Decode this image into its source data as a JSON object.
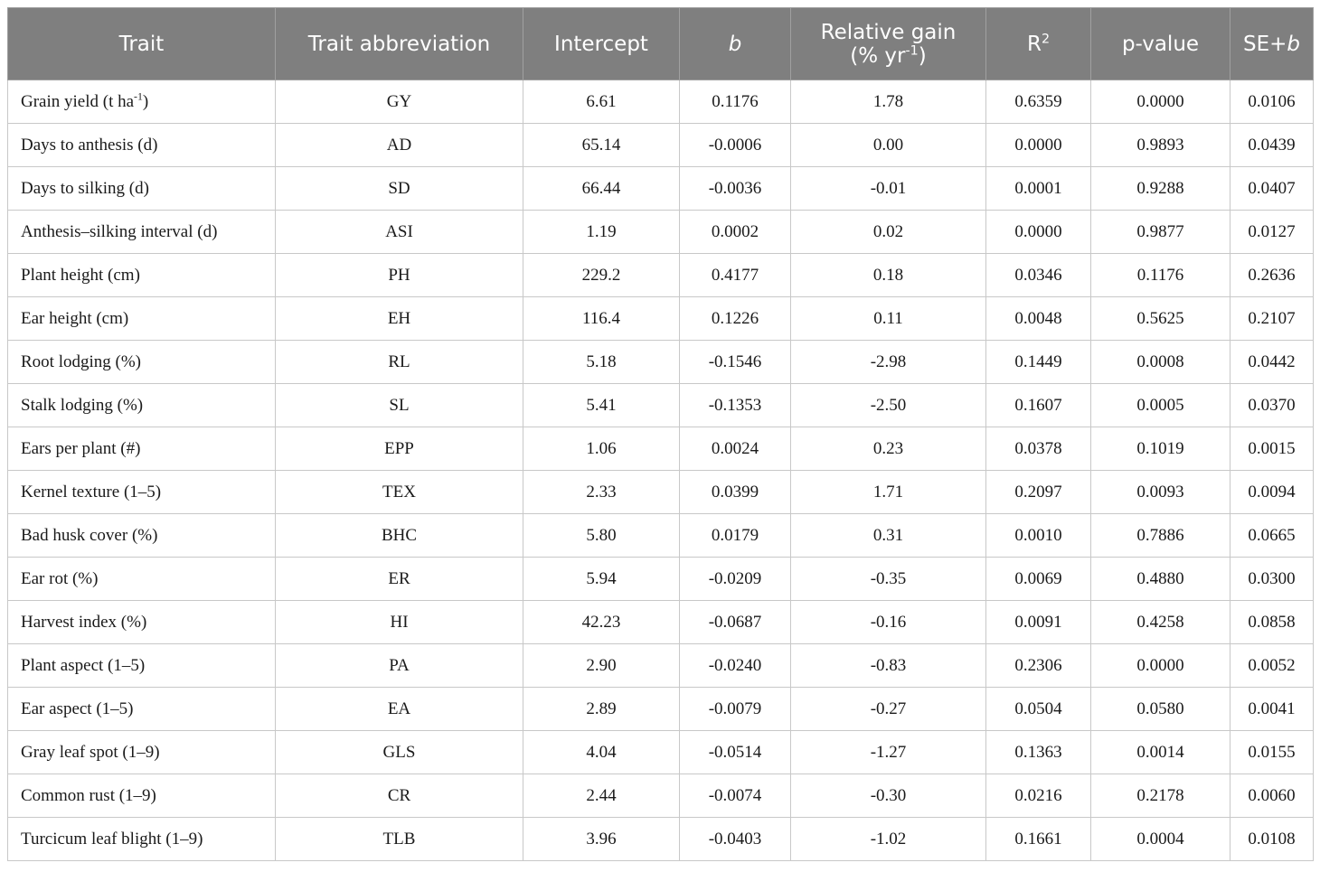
{
  "headers": {
    "trait": "Trait",
    "abbr": "Trait abbreviation",
    "intercept": "Intercept",
    "b": "b",
    "rel_gain_line1": "Relative gain",
    "rel_gain_line2_pre": "(% yr",
    "rel_gain_line2_sup": "-1",
    "rel_gain_line2_post": ")",
    "r2_base": "R",
    "r2_sup": "2",
    "pvalue": "p-value",
    "se_pre": "SE+",
    "se_b": "b"
  },
  "rows": [
    {
      "trait": "Grain yield (t ha",
      "trait_sup": "-1",
      "trait_post": ")",
      "abbr": "GY",
      "intercept": "6.61",
      "b": "0.1176",
      "rel_gain": "1.78",
      "r2": "0.6359",
      "p": "0.0000",
      "se": "0.0106"
    },
    {
      "trait": "Days to anthesis (d)",
      "abbr": "AD",
      "intercept": "65.14",
      "b": "-0.0006",
      "rel_gain": "0.00",
      "r2": "0.0000",
      "p": "0.9893",
      "se": "0.0439"
    },
    {
      "trait": "Days to silking (d)",
      "abbr": "SD",
      "intercept": "66.44",
      "b": "-0.0036",
      "rel_gain": "-0.01",
      "r2": "0.0001",
      "p": "0.9288",
      "se": "0.0407"
    },
    {
      "trait": "Anthesis–silking interval (d)",
      "abbr": "ASI",
      "intercept": "1.19",
      "b": "0.0002",
      "rel_gain": "0.02",
      "r2": "0.0000",
      "p": "0.9877",
      "se": "0.0127"
    },
    {
      "trait": "Plant height (cm)",
      "abbr": "PH",
      "intercept": "229.2",
      "b": "0.4177",
      "rel_gain": "0.18",
      "r2": "0.0346",
      "p": "0.1176",
      "se": "0.2636"
    },
    {
      "trait": "Ear height (cm)",
      "abbr": "EH",
      "intercept": "116.4",
      "b": "0.1226",
      "rel_gain": "0.11",
      "r2": "0.0048",
      "p": "0.5625",
      "se": "0.2107"
    },
    {
      "trait": "Root lodging (%)",
      "abbr": "RL",
      "intercept": "5.18",
      "b": "-0.1546",
      "rel_gain": "-2.98",
      "r2": "0.1449",
      "p": "0.0008",
      "se": "0.0442"
    },
    {
      "trait": "Stalk lodging (%)",
      "abbr": "SL",
      "intercept": "5.41",
      "b": "-0.1353",
      "rel_gain": "-2.50",
      "r2": "0.1607",
      "p": "0.0005",
      "se": "0.0370"
    },
    {
      "trait": "Ears per plant (#)",
      "abbr": "EPP",
      "intercept": "1.06",
      "b": "0.0024",
      "rel_gain": "0.23",
      "r2": "0.0378",
      "p": "0.1019",
      "se": "0.0015"
    },
    {
      "trait": "Kernel texture (1–5)",
      "abbr": "TEX",
      "intercept": "2.33",
      "b": "0.0399",
      "rel_gain": "1.71",
      "r2": "0.2097",
      "p": "0.0093",
      "se": "0.0094"
    },
    {
      "trait": "Bad husk cover (%)",
      "abbr": "BHC",
      "intercept": "5.80",
      "b": "0.0179",
      "rel_gain": "0.31",
      "r2": "0.0010",
      "p": "0.7886",
      "se": "0.0665"
    },
    {
      "trait": "Ear rot (%)",
      "abbr": "ER",
      "intercept": "5.94",
      "b": "-0.0209",
      "rel_gain": "-0.35",
      "r2": "0.0069",
      "p": "0.4880",
      "se": "0.0300"
    },
    {
      "trait": "Harvest index (%)",
      "abbr": "HI",
      "intercept": "42.23",
      "b": "-0.0687",
      "rel_gain": "-0.16",
      "r2": "0.0091",
      "p": "0.4258",
      "se": "0.0858"
    },
    {
      "trait": "Plant aspect (1–5)",
      "abbr": "PA",
      "intercept": "2.90",
      "b": "-0.0240",
      "rel_gain": "-0.83",
      "r2": "0.2306",
      "p": "0.0000",
      "se": "0.0052"
    },
    {
      "trait": "Ear aspect (1–5)",
      "abbr": "EA",
      "intercept": "2.89",
      "b": "-0.0079",
      "rel_gain": "-0.27",
      "r2": "0.0504",
      "p": "0.0580",
      "se": "0.0041"
    },
    {
      "trait": "Gray leaf spot (1–9)",
      "abbr": "GLS",
      "intercept": "4.04",
      "b": "-0.0514",
      "rel_gain": "-1.27",
      "r2": "0.1363",
      "p": "0.0014",
      "se": "0.0155"
    },
    {
      "trait": "Common rust (1–9)",
      "abbr": "CR",
      "intercept": "2.44",
      "b": "-0.0074",
      "rel_gain": "-0.30",
      "r2": "0.0216",
      "p": "0.2178",
      "se": "0.0060"
    },
    {
      "trait": "Turcicum leaf blight (1–9)",
      "abbr": "TLB",
      "intercept": "3.96",
      "b": "-0.0403",
      "rel_gain": "-1.02",
      "r2": "0.1661",
      "p": "0.0004",
      "se": "0.0108"
    }
  ]
}
